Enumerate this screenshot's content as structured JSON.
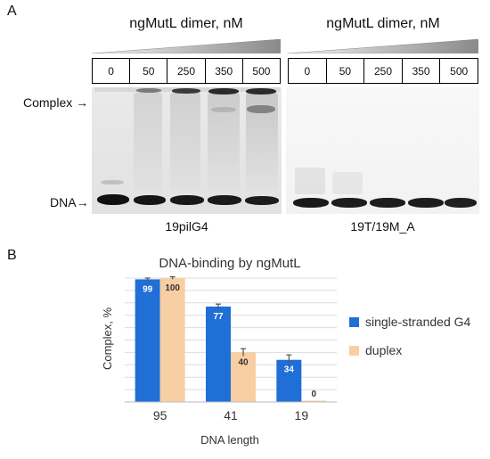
{
  "panel_a": {
    "letter": "A",
    "gels": [
      {
        "title": "ngMutL dimer, nM",
        "concentrations": [
          "0",
          "50",
          "250",
          "350",
          "500"
        ],
        "label": "19pilG4"
      },
      {
        "title": "ngMutL dimer, nM",
        "concentrations": [
          "0",
          "50",
          "250",
          "350",
          "500"
        ],
        "label": "19T/19M_A"
      }
    ],
    "complex_label": "Complex",
    "dna_label": "DNA",
    "arrow": "→"
  },
  "panel_b": {
    "letter": "B"
  },
  "chart_data": {
    "type": "bar",
    "title": "DNA-binding by ngMutL",
    "xlabel": "DNA length",
    "ylabel": "Complex, %",
    "categories": [
      "95",
      "41",
      "19"
    ],
    "ylim": [
      0,
      100
    ],
    "grid": true,
    "legend_position": "right",
    "series": [
      {
        "name": "single-stranded G4",
        "color": "#1f6fd6",
        "values": [
          99,
          77,
          34
        ],
        "labels": [
          "99",
          "77",
          "34"
        ],
        "errors": [
          1,
          2,
          4
        ]
      },
      {
        "name": "duplex",
        "color": "#f8cfa3",
        "values": [
          100,
          40,
          0
        ],
        "labels": [
          "100",
          "40",
          "0"
        ],
        "errors": [
          1,
          3,
          0
        ]
      }
    ]
  }
}
